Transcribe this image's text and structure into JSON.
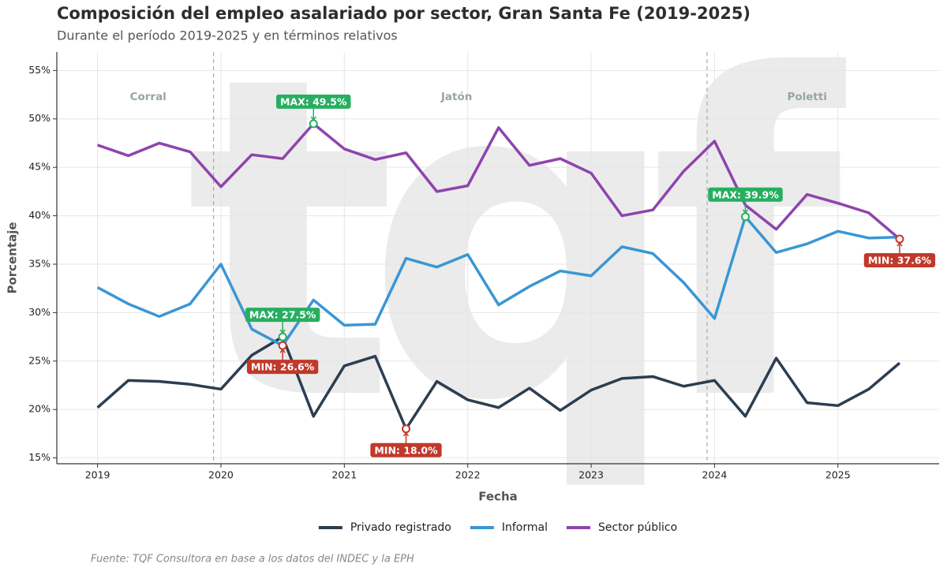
{
  "chart_data": {
    "type": "line",
    "title": "Composición del empleo asalariado por sector, Gran Santa Fe (2019-2025)",
    "subtitle": "Durante el período 2019-2025 y en términos relativos",
    "xlabel": "Fecha",
    "ylabel": "Porcentaje",
    "source": "Fuente: TQF Consultora en base a los datos del INDEC y la EPH",
    "watermark": "tqf",
    "x": [
      2019,
      2019.25,
      2019.5,
      2019.75,
      2020,
      2020.25,
      2020.5,
      2020.75,
      2021,
      2021.25,
      2021.5,
      2021.75,
      2022,
      2022.25,
      2022.5,
      2022.75,
      2023,
      2023.25,
      2023.5,
      2023.75,
      2024,
      2024.25,
      2024.5,
      2024.75,
      2025,
      2025.25,
      2025.5
    ],
    "series": [
      {
        "name": "Privado registrado",
        "color": "#2c3e50",
        "values": [
          20.2,
          23.0,
          22.9,
          22.6,
          22.1,
          25.6,
          27.5,
          19.3,
          24.5,
          25.5,
          18.0,
          22.9,
          21.0,
          20.2,
          22.2,
          19.9,
          22.0,
          23.2,
          23.4,
          22.4,
          23.0,
          19.3,
          25.3,
          20.7,
          20.4,
          22.1,
          24.8
        ]
      },
      {
        "name": "Informal",
        "color": "#3a96d4",
        "values": [
          32.6,
          30.9,
          29.6,
          30.9,
          35.0,
          28.3,
          26.6,
          31.3,
          28.7,
          28.8,
          35.6,
          34.7,
          36.0,
          30.8,
          32.7,
          34.3,
          33.8,
          36.8,
          36.1,
          33.1,
          29.4,
          39.9,
          36.2,
          37.1,
          38.4,
          37.7,
          37.8
        ]
      },
      {
        "name": "Sector público",
        "color": "#8e44ad",
        "values": [
          47.3,
          46.2,
          47.5,
          46.6,
          43.0,
          46.3,
          45.9,
          49.5,
          46.9,
          45.8,
          46.5,
          42.5,
          43.1,
          49.1,
          45.2,
          45.9,
          44.4,
          40.0,
          40.6,
          44.6,
          47.7,
          41.1,
          38.6,
          42.2,
          41.3,
          40.3,
          37.6
        ]
      }
    ],
    "xlim": [
      2018.67,
      2025.82
    ],
    "xticks": [
      2019,
      2020,
      2021,
      2022,
      2023,
      2024,
      2025
    ],
    "ylim": [
      14.4,
      56.9
    ],
    "yticks": [
      {
        "value": 15,
        "label": "15%"
      },
      {
        "value": 20,
        "label": "20%"
      },
      {
        "value": 25,
        "label": "25%"
      },
      {
        "value": 30,
        "label": "30%"
      },
      {
        "value": 35,
        "label": "35%"
      },
      {
        "value": 40,
        "label": "40%"
      },
      {
        "value": 45,
        "label": "45%"
      },
      {
        "value": 50,
        "label": "50%"
      },
      {
        "value": 55,
        "label": "55%"
      }
    ],
    "grid": true,
    "legend": "bottom",
    "dividers": [
      2019.94,
      2023.94
    ],
    "periods": [
      {
        "name": "Corral",
        "x": 2019.41
      },
      {
        "name": "Jatón",
        "x": 2021.91
      },
      {
        "name": "Poletti",
        "x": 2024.75
      }
    ],
    "annotations": [
      {
        "text": "MAX: 49.5%",
        "x": 2020.75,
        "y": 49.5,
        "color": "#27ae60",
        "position": "above"
      },
      {
        "text": "MIN: 37.6%",
        "x": 2025.5,
        "y": 37.6,
        "color": "#c0392b",
        "position": "below"
      },
      {
        "text": "MAX: 39.9%",
        "x": 2024.25,
        "y": 39.9,
        "color": "#27ae60",
        "position": "above"
      },
      {
        "text": "MIN: 26.6%",
        "x": 2020.5,
        "y": 26.6,
        "color": "#c0392b",
        "position": "below"
      },
      {
        "text": "MAX: 27.5%",
        "x": 2020.5,
        "y": 27.5,
        "color": "#27ae60",
        "position": "above"
      },
      {
        "text": "MIN: 18.0%",
        "x": 2021.5,
        "y": 18.0,
        "color": "#c0392b",
        "position": "below"
      }
    ]
  }
}
